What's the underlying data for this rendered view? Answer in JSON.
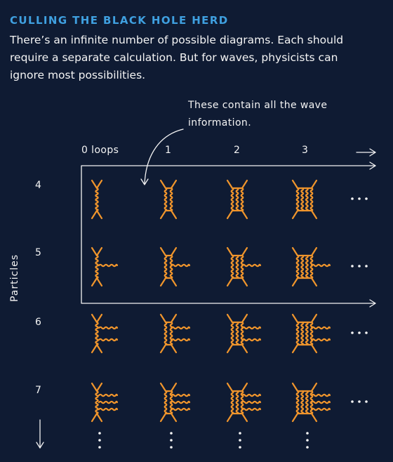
{
  "header": {
    "title": "CULLING THE BLACK HOLE HERD",
    "intro": "There’s an infinite number of possible diagrams. Each should require a separate calculation.  But for waves, physicists can ignore most possibilities."
  },
  "annotation": "These contain all the wave information.",
  "columns": [
    {
      "label": "0 loops",
      "loops": 0
    },
    {
      "label": "1",
      "loops": 1
    },
    {
      "label": "2",
      "loops": 2
    },
    {
      "label": "3",
      "loops": 3
    }
  ],
  "rows": [
    {
      "label": "4",
      "particles": 4,
      "waves": 0
    },
    {
      "label": "5",
      "particles": 5,
      "waves": 1
    },
    {
      "label": "6",
      "particles": 6,
      "waves": 2
    },
    {
      "label": "7",
      "particles": 7,
      "waves": 3
    }
  ],
  "axis_label": "Particles",
  "colors": {
    "background": "#0f1b33",
    "accent": "#3fa0e0",
    "diagram": "#f0952c",
    "text": "#f4f4f4"
  }
}
